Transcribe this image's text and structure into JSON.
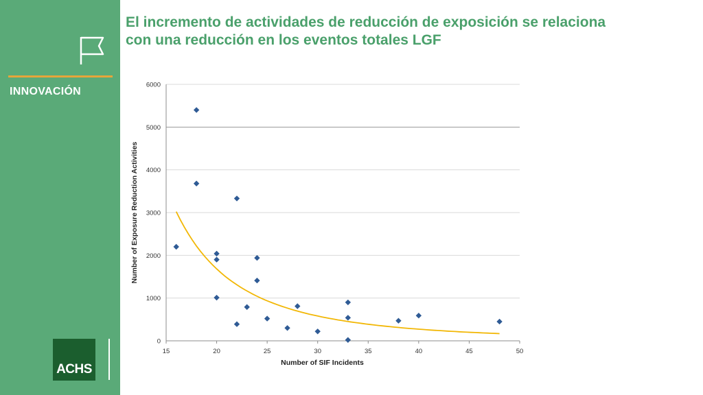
{
  "sidebar": {
    "section_label": "INNOVACIÓN",
    "logo_text": "ACHS",
    "icon": "flag-icon",
    "accent_color": "#e6a53a",
    "background_color": "#5aaa78"
  },
  "title": "El incremento de actividades de reducción de exposición se relaciona con una reducción en los eventos totales LGF",
  "chart_data": {
    "type": "scatter",
    "xlabel": "Number of SIF Incidents",
    "ylabel": "Number of Exposure Reduction Activities",
    "xlim": [
      15,
      50
    ],
    "ylim": [
      0,
      6000
    ],
    "xticks": [
      15,
      20,
      25,
      30,
      35,
      40,
      45,
      50
    ],
    "yticks": [
      0,
      1000,
      2000,
      3000,
      4000,
      5000,
      6000
    ],
    "grid": true,
    "marker_color": "#2f5b95",
    "trend_color": "#f2b705",
    "points": [
      {
        "x": 16,
        "y": 2200
      },
      {
        "x": 18,
        "y": 5400
      },
      {
        "x": 18,
        "y": 3680
      },
      {
        "x": 20,
        "y": 2040
      },
      {
        "x": 20,
        "y": 1900
      },
      {
        "x": 20,
        "y": 1010
      },
      {
        "x": 22,
        "y": 3330
      },
      {
        "x": 22,
        "y": 390
      },
      {
        "x": 23,
        "y": 790
      },
      {
        "x": 24,
        "y": 1940
      },
      {
        "x": 24,
        "y": 1410
      },
      {
        "x": 25,
        "y": 520
      },
      {
        "x": 27,
        "y": 300
      },
      {
        "x": 28,
        "y": 810
      },
      {
        "x": 30,
        "y": 220
      },
      {
        "x": 33,
        "y": 900
      },
      {
        "x": 33,
        "y": 540
      },
      {
        "x": 33,
        "y": 20
      },
      {
        "x": 38,
        "y": 470
      },
      {
        "x": 40,
        "y": 590
      },
      {
        "x": 48,
        "y": 450
      }
    ],
    "trendline": {
      "type": "power",
      "x_range": [
        16,
        48
      ],
      "samples": [
        {
          "x": 16,
          "y": 2750
        },
        {
          "x": 20,
          "y": 1760
        },
        {
          "x": 25,
          "y": 1010
        },
        {
          "x": 30,
          "y": 600
        },
        {
          "x": 35,
          "y": 390
        },
        {
          "x": 40,
          "y": 270
        },
        {
          "x": 48,
          "y": 160
        }
      ]
    }
  }
}
